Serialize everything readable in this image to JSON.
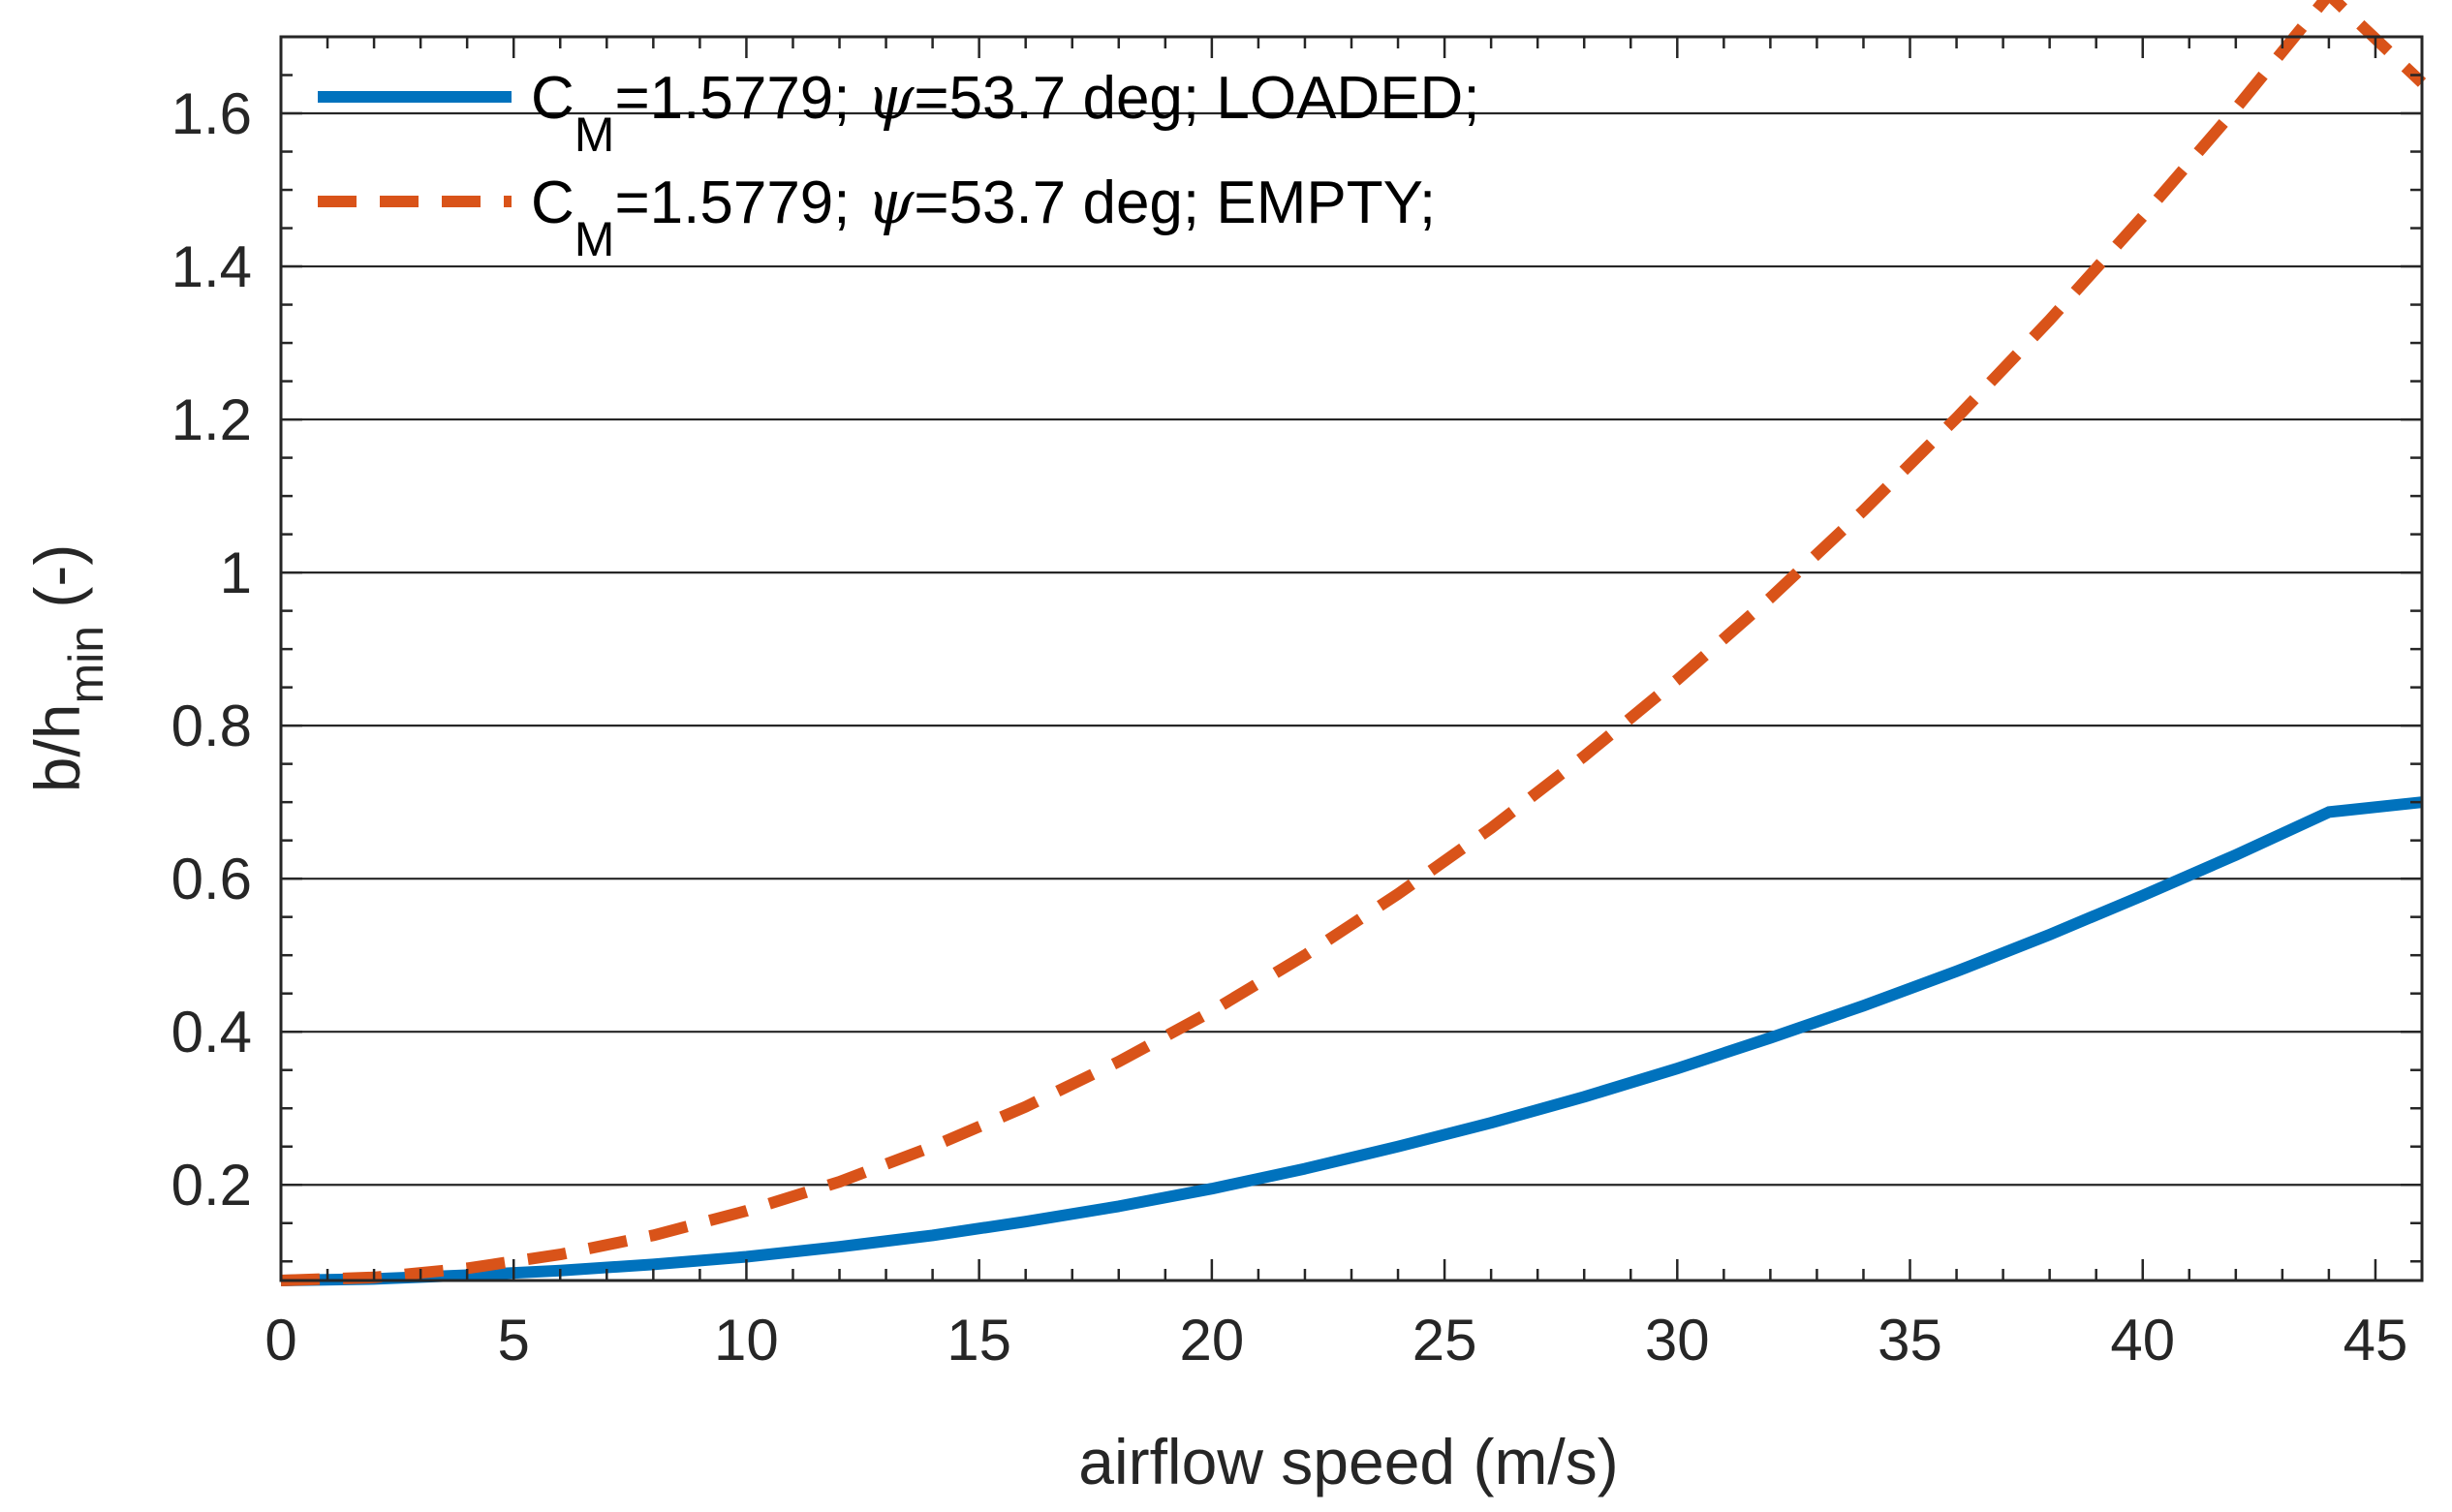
{
  "chart_data": {
    "type": "line",
    "title": "",
    "xlabel": "airflow speed (m/s)",
    "ylabel": {
      "base": "b/h",
      "subscript": "min",
      "unit": "(-)"
    },
    "xlim": [
      0,
      46
    ],
    "ylim": [
      0.075,
      1.7
    ],
    "x_ticks": [
      0,
      5,
      10,
      15,
      20,
      25,
      30,
      35,
      40,
      45
    ],
    "x_tick_labels": [
      "0",
      "5",
      "10",
      "15",
      "20",
      "25",
      "30",
      "35",
      "40",
      "45"
    ],
    "y_ticks": [
      0.2,
      0.4,
      0.6,
      0.8,
      1.0,
      1.2,
      1.4,
      1.6
    ],
    "y_tick_labels": [
      "0.2",
      "0.4",
      "0.6",
      "0.8",
      "1",
      "1.2",
      "1.4",
      "1.6"
    ],
    "y_minor_step": 0.05,
    "x_minor_step": 1,
    "grid": "horizontal",
    "legend_position": "top-left",
    "series": [
      {
        "name": "LOADED",
        "legend": {
          "pre": "C",
          "sub": "M",
          "mid": "=1.5779; ",
          "greek": "ψ",
          "post": "=53.7 deg; LOADED;"
        },
        "color": "#0072BD",
        "style": "solid",
        "x": [
          0,
          2,
          4,
          6,
          8,
          10,
          12,
          14,
          16,
          18,
          20,
          22,
          24,
          26,
          28,
          30,
          32,
          34,
          36,
          38,
          40,
          42,
          44,
          46
        ],
        "y": [
          0.075,
          0.077,
          0.082,
          0.088,
          0.096,
          0.106,
          0.119,
          0.134,
          0.152,
          0.172,
          0.195,
          0.221,
          0.25,
          0.281,
          0.315,
          0.352,
          0.392,
          0.434,
          0.479,
          0.527,
          0.578,
          0.631,
          0.687,
          0.7
        ]
      },
      {
        "name": "EMPTY",
        "legend": {
          "pre": "C",
          "sub": "M",
          "mid": "=1.5779; ",
          "greek": "ψ",
          "post": "=53.7 deg; EMPTY;"
        },
        "color": "#D95319",
        "style": "dashed",
        "x": [
          0,
          2,
          4,
          6,
          8,
          10,
          12,
          14,
          16,
          18,
          20,
          22,
          24,
          26,
          28,
          30,
          32,
          34,
          36,
          38,
          40,
          42,
          44,
          46
        ],
        "y": [
          0.075,
          0.079,
          0.091,
          0.109,
          0.134,
          0.166,
          0.204,
          0.25,
          0.302,
          0.361,
          0.427,
          0.5,
          0.58,
          0.666,
          0.76,
          0.86,
          0.967,
          1.081,
          1.202,
          1.33,
          1.465,
          1.606,
          1.755,
          1.64
        ]
      }
    ]
  }
}
